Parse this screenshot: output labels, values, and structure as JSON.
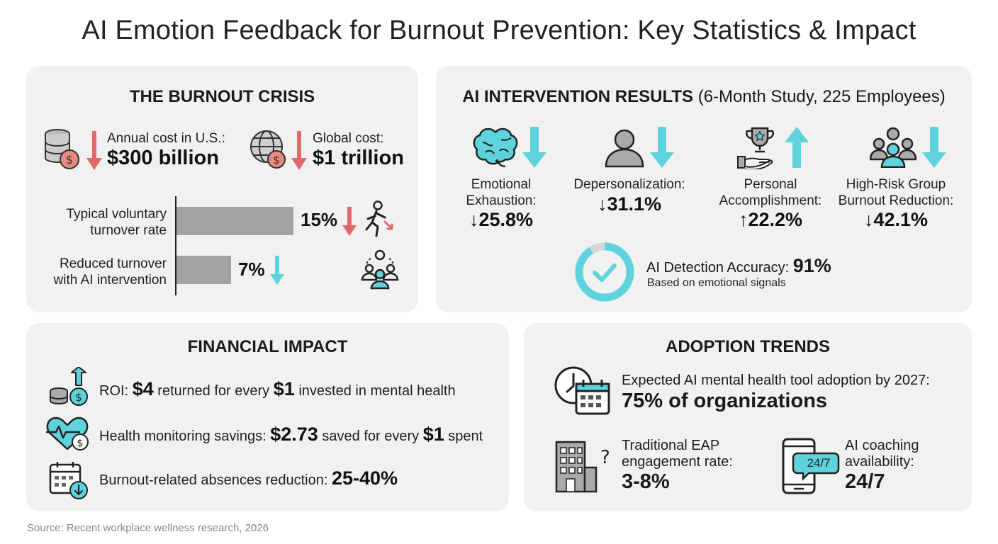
{
  "title": "AI Emotion Feedback for Burnout Prevention: Key Statistics & Impact",
  "crisis": {
    "title": "THE BURNOUT CRISIS",
    "us_cost_label": "Annual cost in U.S.:",
    "us_cost_value": "$300 billion",
    "global_cost_label": "Global cost:",
    "global_cost_value": "$1 trillion",
    "turnover_typical_label_1": "Typical voluntary",
    "turnover_typical_label_2": "turnover rate",
    "turnover_typical_value": "15%",
    "turnover_typical_pct": 15,
    "turnover_ai_label_1": "Reduced turnover",
    "turnover_ai_label_2": "with AI intervention",
    "turnover_ai_value": "7%",
    "turnover_ai_pct": 7,
    "colors": {
      "red": "#e06a6a",
      "teal": "#5fd3dd",
      "bar": "#a3a3a3"
    }
  },
  "intervention": {
    "title_bold": "AI INTERVENTION RESULTS",
    "title_light": "(6-Month Study, 225 Employees)",
    "stats": [
      {
        "label_1": "Emotional",
        "label_2": "Exhaustion:",
        "value": "↓25.8%",
        "icon": "brain-icon",
        "direction": "down"
      },
      {
        "label_1": "Depersonalization:",
        "label_2": "",
        "value": "↓31.1%",
        "icon": "person-icon",
        "direction": "down"
      },
      {
        "label_1": "Personal",
        "label_2": "Accomplishment:",
        "value": "↑22.2%",
        "icon": "trophy-icon",
        "direction": "up"
      },
      {
        "label_1": "High-Risk Group",
        "label_2": "Burnout Reduction:",
        "value": "↓42.1%",
        "icon": "group-icon",
        "direction": "down"
      }
    ],
    "accuracy_label": "AI Detection Accuracy:",
    "accuracy_value": "91%",
    "accuracy_pct": 91,
    "accuracy_sub": "Based on emotional signals"
  },
  "financial": {
    "title": "FINANCIAL IMPACT",
    "roi_pre": "ROI:",
    "roi_value": "$4",
    "roi_mid": "returned for every",
    "roi_value2": "$1",
    "roi_post": "invested in mental health",
    "health_pre": "Health monitoring savings:",
    "health_value": "$2.73",
    "health_mid": "saved for every",
    "health_value2": "$1",
    "health_post": "spent",
    "absence_pre": "Burnout-related absences reduction:",
    "absence_value": "25-40%"
  },
  "adoption": {
    "title": "ADOPTION TRENDS",
    "expected_label": "Expected AI mental health tool adoption by 2027:",
    "expected_value": "75% of organizations",
    "eap_label_1": "Traditional EAP",
    "eap_label_2": "engagement rate:",
    "eap_value": "3-8%",
    "coach_label_1": "AI coaching",
    "coach_label_2": "availability:",
    "coach_value": "24/7",
    "chat_bubble": "24/7"
  },
  "source": "Source: Recent workplace wellness research, 2026"
}
